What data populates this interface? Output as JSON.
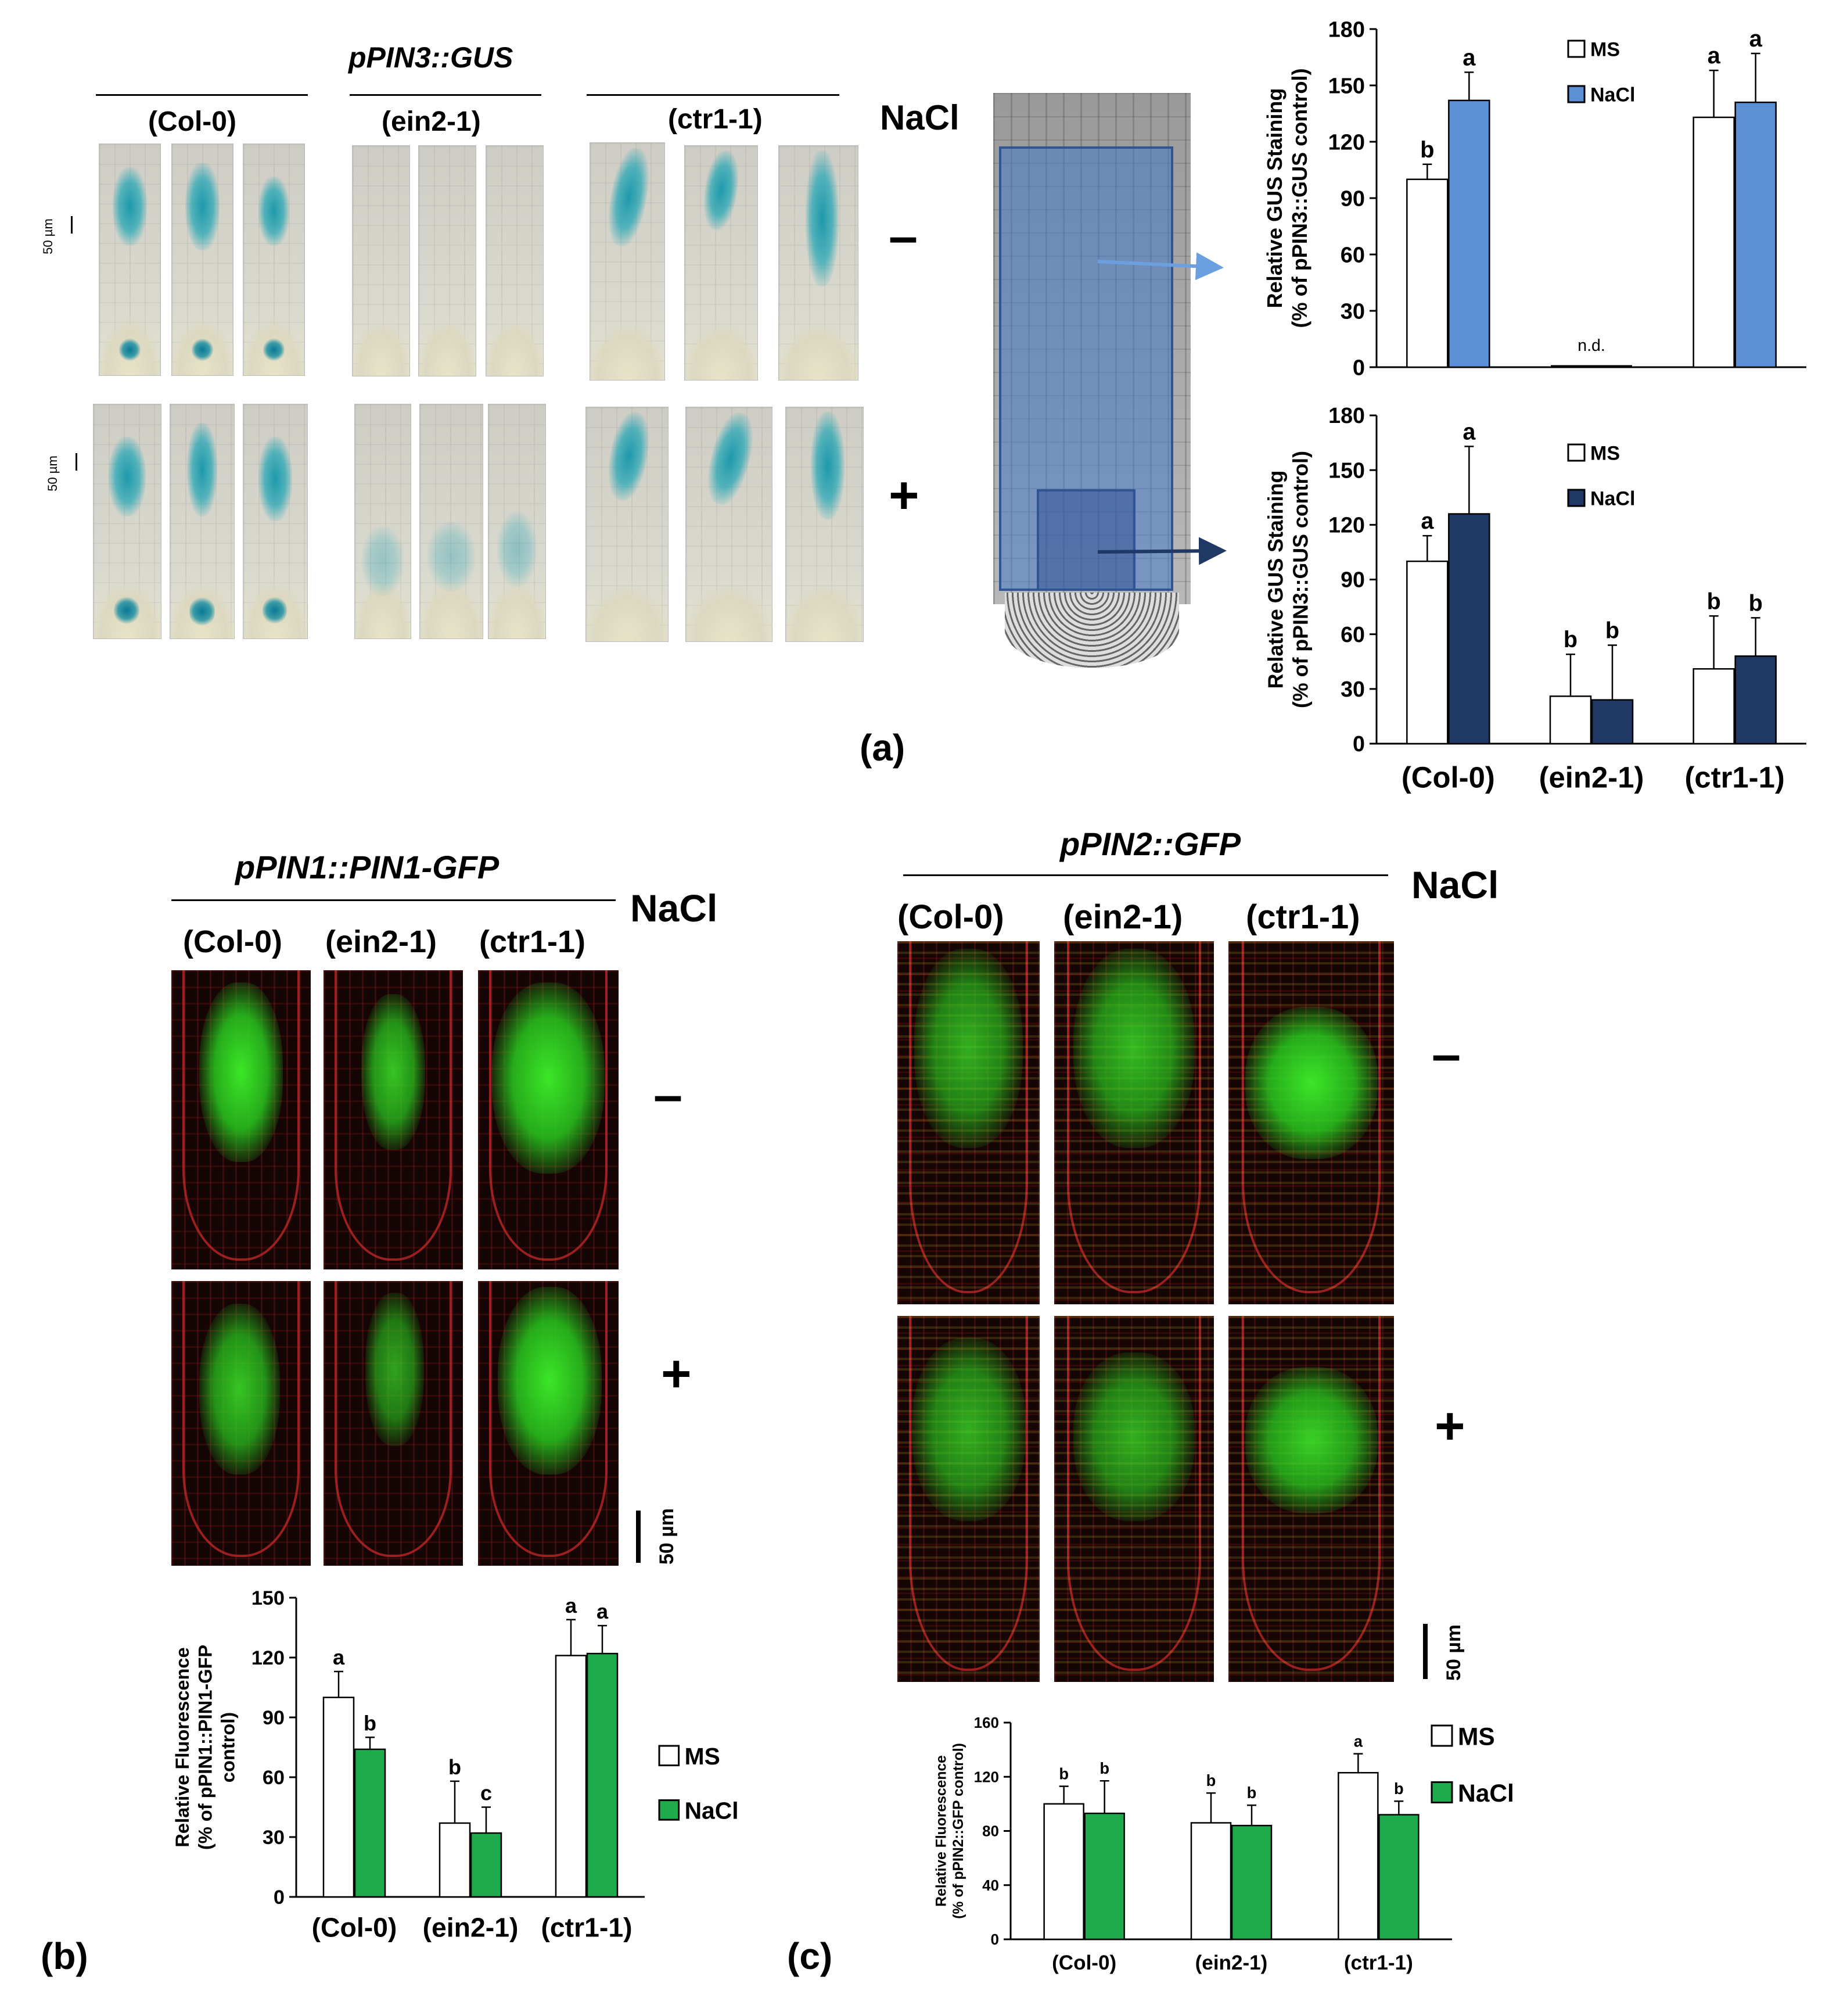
{
  "panel_a": {
    "title": "pPIN3::GUS",
    "genotypes": [
      "(Col-0)",
      "(ein2-1)",
      "(ctr1-1)"
    ],
    "nacl_label": "NaCl",
    "minus": "–",
    "plus": "+",
    "scale_label": "50 µm",
    "panel_label": "(a)"
  },
  "panel_b": {
    "title": "pPIN1::PIN1-GFP",
    "genotypes": [
      "(Col-0)",
      "(ein2-1)",
      "(ctr1-1)"
    ],
    "nacl_label": "NaCl",
    "minus": "–",
    "plus": "+",
    "scale_label": "50 µm",
    "panel_label": "(b)"
  },
  "panel_c": {
    "title": "pPIN2::GFP",
    "genotypes": [
      "(Col-0)",
      "(ein2-1)",
      "(ctr1-1)"
    ],
    "nacl_label": "NaCl",
    "minus": "–",
    "plus": "+",
    "scale_label": "50 µm",
    "panel_label": "(c)"
  },
  "colors": {
    "ms_fill": "#ffffff",
    "nacl_light_blue": "#5b8fd6",
    "nacl_dark_blue": "#1f3864",
    "nacl_green": "#1faa4b",
    "gus_blue": "#1a9db0",
    "gfp_green": "#3fe028"
  },
  "chart_data": [
    {
      "id": "a-top",
      "type": "bar",
      "categories": [
        "(Col-0)",
        "(ein2-1)",
        "(ctr1-1)"
      ],
      "category_labels_shown": false,
      "ylabel_lines": [
        "Relative GUS Staining",
        "(% of pPIN3::GUS control)"
      ],
      "ylim": [
        0,
        180
      ],
      "yticks": [
        0,
        30,
        60,
        90,
        120,
        150,
        180
      ],
      "legend": [
        "MS",
        "NaCl"
      ],
      "legend_position": "top-center",
      "series": [
        {
          "name": "MS",
          "values": [
            100,
            null,
            133
          ],
          "errors": [
            8,
            null,
            25
          ],
          "letters": [
            "b",
            "",
            "a"
          ]
        },
        {
          "name": "NaCl",
          "values": [
            142,
            null,
            141
          ],
          "errors": [
            15,
            null,
            26
          ],
          "letters": [
            "a",
            "",
            "a"
          ]
        }
      ],
      "annotations": [
        {
          "category": "(ein2-1)",
          "text": "n.d."
        }
      ]
    },
    {
      "id": "a-bottom",
      "type": "bar",
      "categories": [
        "(Col-0)",
        "(ein2-1)",
        "(ctr1-1)"
      ],
      "category_labels_shown": true,
      "ylabel_lines": [
        "Relative GUS Staining",
        "(% of pPIN3::GUS control)"
      ],
      "ylim": [
        0,
        180
      ],
      "yticks": [
        0,
        30,
        60,
        90,
        120,
        150,
        180
      ],
      "legend": [
        "MS",
        "NaCl"
      ],
      "legend_position": "top-center",
      "series": [
        {
          "name": "MS",
          "values": [
            100,
            26,
            41
          ],
          "errors": [
            14,
            23,
            29
          ],
          "letters": [
            "a",
            "b",
            "b"
          ]
        },
        {
          "name": "NaCl",
          "values": [
            126,
            24,
            48
          ],
          "errors": [
            37,
            30,
            21
          ],
          "letters": [
            "a",
            "b",
            "b"
          ]
        }
      ]
    },
    {
      "id": "b",
      "type": "bar",
      "categories": [
        "(Col-0)",
        "(ein2-1)",
        "(ctr1-1)"
      ],
      "category_labels_shown": true,
      "ylabel_lines": [
        "Relative Fluorescence",
        "(% of pPIN1::PIN1-GFP",
        "control)"
      ],
      "ylim": [
        0,
        150
      ],
      "yticks": [
        0,
        30,
        60,
        90,
        120,
        150
      ],
      "legend": [
        "MS",
        "NaCl"
      ],
      "legend_position": "right",
      "series": [
        {
          "name": "MS",
          "values": [
            100,
            37,
            121
          ],
          "errors": [
            13,
            21,
            18
          ],
          "letters": [
            "a",
            "b",
            "a"
          ]
        },
        {
          "name": "NaCl",
          "values": [
            74,
            32,
            122
          ],
          "errors": [
            6,
            13,
            14
          ],
          "letters": [
            "b",
            "c",
            "a"
          ]
        }
      ]
    },
    {
      "id": "c",
      "type": "bar",
      "categories": [
        "(Col-0)",
        "(ein2-1)",
        "(ctr1-1)"
      ],
      "category_labels_shown": true,
      "ylabel_lines": [
        "Relative Fluorescence",
        "(% of pPIN2::GFP control)"
      ],
      "ylim": [
        0,
        160
      ],
      "yticks": [
        0,
        40,
        80,
        120,
        160
      ],
      "legend": [
        "MS",
        "NaCl"
      ],
      "legend_position": "top-right",
      "series": [
        {
          "name": "MS",
          "values": [
            100,
            86,
            123
          ],
          "errors": [
            13,
            22,
            14
          ],
          "letters": [
            "b",
            "b",
            "a"
          ]
        },
        {
          "name": "NaCl",
          "values": [
            93,
            84,
            92
          ],
          "errors": [
            24,
            15,
            10
          ],
          "letters": [
            "b",
            "b",
            "b"
          ]
        }
      ]
    }
  ]
}
